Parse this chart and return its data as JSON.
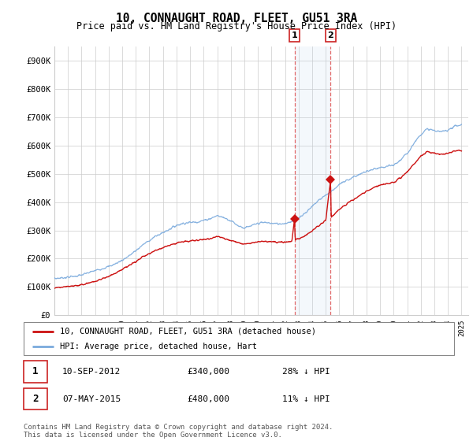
{
  "title": "10, CONNAUGHT ROAD, FLEET, GU51 3RA",
  "subtitle": "Price paid vs. HM Land Registry's House Price Index (HPI)",
  "hpi_label": "HPI: Average price, detached house, Hart",
  "price_label": "10, CONNAUGHT ROAD, FLEET, GU51 3RA (detached house)",
  "hpi_color": "#7aaadd",
  "price_color": "#cc1111",
  "marker1_x": 2012.69,
  "marker1_y": 340000,
  "marker2_x": 2015.35,
  "marker2_y": 480000,
  "marker1_date": "10-SEP-2012",
  "marker1_price": "£340,000",
  "marker1_note": "28% ↓ HPI",
  "marker2_date": "07-MAY-2015",
  "marker2_price": "£480,000",
  "marker2_note": "11% ↓ HPI",
  "ylim_min": 0,
  "ylim_max": 950000,
  "xlim_min": 1995.0,
  "xlim_max": 2025.5,
  "footer": "Contains HM Land Registry data © Crown copyright and database right 2024.\nThis data is licensed under the Open Government Licence v3.0.",
  "yticks": [
    0,
    100000,
    200000,
    300000,
    400000,
    500000,
    600000,
    700000,
    800000,
    900000
  ],
  "ytick_labels": [
    "£0",
    "£100K",
    "£200K",
    "£300K",
    "£400K",
    "£500K",
    "£600K",
    "£700K",
    "£800K",
    "£900K"
  ],
  "xticks": [
    1995,
    1996,
    1997,
    1998,
    1999,
    2000,
    2001,
    2002,
    2003,
    2004,
    2005,
    2006,
    2007,
    2008,
    2009,
    2010,
    2011,
    2012,
    2013,
    2014,
    2015,
    2016,
    2017,
    2018,
    2019,
    2020,
    2021,
    2022,
    2023,
    2024,
    2025
  ],
  "hpi_anchors": [
    [
      1995.0,
      130000
    ],
    [
      1995.5,
      132000
    ],
    [
      1996.0,
      135000
    ],
    [
      1996.5,
      138000
    ],
    [
      1997.0,
      142000
    ],
    [
      1997.5,
      150000
    ],
    [
      1998.0,
      158000
    ],
    [
      1998.5,
      165000
    ],
    [
      1999.0,
      172000
    ],
    [
      1999.5,
      182000
    ],
    [
      2000.0,
      195000
    ],
    [
      2000.5,
      210000
    ],
    [
      2001.0,
      228000
    ],
    [
      2001.5,
      248000
    ],
    [
      2002.0,
      265000
    ],
    [
      2002.5,
      280000
    ],
    [
      2003.0,
      292000
    ],
    [
      2003.5,
      305000
    ],
    [
      2004.0,
      318000
    ],
    [
      2004.5,
      325000
    ],
    [
      2005.0,
      328000
    ],
    [
      2005.5,
      330000
    ],
    [
      2006.0,
      335000
    ],
    [
      2006.5,
      342000
    ],
    [
      2007.0,
      352000
    ],
    [
      2007.5,
      345000
    ],
    [
      2008.0,
      335000
    ],
    [
      2008.5,
      318000
    ],
    [
      2009.0,
      308000
    ],
    [
      2009.5,
      315000
    ],
    [
      2010.0,
      325000
    ],
    [
      2010.5,
      328000
    ],
    [
      2011.0,
      325000
    ],
    [
      2011.5,
      323000
    ],
    [
      2012.0,
      325000
    ],
    [
      2012.5,
      332000
    ],
    [
      2013.0,
      345000
    ],
    [
      2013.5,
      362000
    ],
    [
      2014.0,
      385000
    ],
    [
      2014.5,
      408000
    ],
    [
      2015.0,
      425000
    ],
    [
      2015.35,
      435000
    ],
    [
      2015.5,
      442000
    ],
    [
      2016.0,
      462000
    ],
    [
      2016.5,
      475000
    ],
    [
      2017.0,
      488000
    ],
    [
      2017.5,
      498000
    ],
    [
      2018.0,
      508000
    ],
    [
      2018.5,
      515000
    ],
    [
      2019.0,
      520000
    ],
    [
      2019.5,
      525000
    ],
    [
      2020.0,
      530000
    ],
    [
      2020.5,
      548000
    ],
    [
      2021.0,
      572000
    ],
    [
      2021.5,
      608000
    ],
    [
      2022.0,
      640000
    ],
    [
      2022.5,
      658000
    ],
    [
      2023.0,
      652000
    ],
    [
      2023.5,
      648000
    ],
    [
      2024.0,
      655000
    ],
    [
      2024.5,
      668000
    ],
    [
      2025.0,
      672000
    ]
  ],
  "price_anchors": [
    [
      1995.0,
      97000
    ],
    [
      1995.5,
      99000
    ],
    [
      1996.0,
      101000
    ],
    [
      1996.5,
      104000
    ],
    [
      1997.0,
      108000
    ],
    [
      1997.5,
      114000
    ],
    [
      1998.0,
      120000
    ],
    [
      1998.5,
      128000
    ],
    [
      1999.0,
      138000
    ],
    [
      1999.5,
      150000
    ],
    [
      2000.0,
      162000
    ],
    [
      2000.5,
      175000
    ],
    [
      2001.0,
      190000
    ],
    [
      2001.5,
      205000
    ],
    [
      2002.0,
      218000
    ],
    [
      2002.5,
      230000
    ],
    [
      2003.0,
      240000
    ],
    [
      2003.5,
      248000
    ],
    [
      2004.0,
      255000
    ],
    [
      2004.5,
      260000
    ],
    [
      2005.0,
      262000
    ],
    [
      2005.5,
      265000
    ],
    [
      2006.0,
      268000
    ],
    [
      2006.5,
      272000
    ],
    [
      2007.0,
      278000
    ],
    [
      2007.5,
      272000
    ],
    [
      2008.0,
      265000
    ],
    [
      2008.5,
      258000
    ],
    [
      2009.0,
      252000
    ],
    [
      2009.5,
      255000
    ],
    [
      2010.0,
      260000
    ],
    [
      2010.5,
      262000
    ],
    [
      2011.0,
      260000
    ],
    [
      2011.5,
      258000
    ],
    [
      2012.0,
      258000
    ],
    [
      2012.5,
      262000
    ],
    [
      2012.69,
      340000
    ],
    [
      2012.75,
      268000
    ],
    [
      2013.0,
      270000
    ],
    [
      2013.5,
      282000
    ],
    [
      2014.0,
      298000
    ],
    [
      2014.5,
      318000
    ],
    [
      2015.0,
      335000
    ],
    [
      2015.35,
      480000
    ],
    [
      2015.4,
      345000
    ],
    [
      2015.5,
      352000
    ],
    [
      2016.0,
      375000
    ],
    [
      2016.5,
      392000
    ],
    [
      2017.0,
      408000
    ],
    [
      2017.5,
      422000
    ],
    [
      2018.0,
      438000
    ],
    [
      2018.5,
      450000
    ],
    [
      2019.0,
      460000
    ],
    [
      2019.5,
      465000
    ],
    [
      2020.0,
      470000
    ],
    [
      2020.5,
      485000
    ],
    [
      2021.0,
      505000
    ],
    [
      2021.5,
      535000
    ],
    [
      2022.0,
      562000
    ],
    [
      2022.5,
      578000
    ],
    [
      2023.0,
      572000
    ],
    [
      2023.5,
      568000
    ],
    [
      2024.0,
      572000
    ],
    [
      2024.5,
      580000
    ],
    [
      2025.0,
      582000
    ]
  ]
}
